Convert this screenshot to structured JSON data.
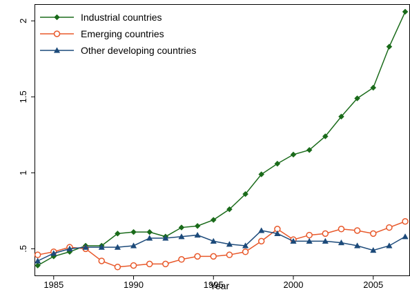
{
  "chart_data": {
    "type": "line",
    "xlabel": "Year",
    "ylabel": "",
    "xlim": [
      1983.8,
      2007.3
    ],
    "ylim": [
      0.32,
      2.11
    ],
    "xticks": [
      1985,
      1990,
      1995,
      2000,
      2005
    ],
    "xtick_labels": [
      "1985",
      "1990",
      "1995",
      "2000",
      "2005"
    ],
    "yticks": [
      0.5,
      1,
      1.5,
      2
    ],
    "ytick_labels": [
      ".5",
      "1",
      "1.5",
      "2"
    ],
    "grid": false,
    "legend_position": "top-left",
    "x": [
      1984,
      1985,
      1986,
      1987,
      1988,
      1989,
      1990,
      1991,
      1992,
      1993,
      1994,
      1995,
      1996,
      1997,
      1998,
      1999,
      2000,
      2001,
      2002,
      2003,
      2004,
      2005,
      2006,
      2007
    ],
    "series": [
      {
        "name": "Industrial countries",
        "color": "#1a6b1a",
        "marker": "diamond",
        "values": [
          0.39,
          0.45,
          0.48,
          0.52,
          0.52,
          0.6,
          0.61,
          0.61,
          0.58,
          0.64,
          0.65,
          0.69,
          0.76,
          0.86,
          0.99,
          1.06,
          1.12,
          1.15,
          1.24,
          1.37,
          1.49,
          1.56,
          1.83,
          2.06
        ]
      },
      {
        "name": "Emerging countries",
        "color": "#e8582a",
        "marker": "circle",
        "values": [
          0.46,
          0.48,
          0.51,
          0.5,
          0.42,
          0.38,
          0.39,
          0.4,
          0.4,
          0.43,
          0.45,
          0.45,
          0.46,
          0.48,
          0.55,
          0.63,
          0.56,
          0.59,
          0.6,
          0.63,
          0.62,
          0.6,
          0.64,
          0.68
        ]
      },
      {
        "name": "Other developing countries",
        "color": "#1c4a7a",
        "marker": "triangle",
        "values": [
          0.42,
          0.47,
          0.5,
          0.51,
          0.51,
          0.51,
          0.52,
          0.57,
          0.57,
          0.58,
          0.59,
          0.55,
          0.53,
          0.52,
          0.62,
          0.6,
          0.55,
          0.55,
          0.55,
          0.54,
          0.52,
          0.49,
          0.52,
          0.58
        ]
      }
    ]
  }
}
